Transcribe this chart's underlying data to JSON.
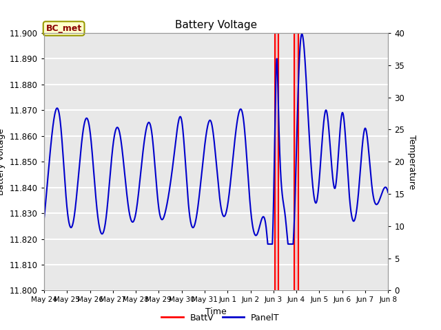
{
  "title": "Battery Voltage",
  "xlabel": "Time",
  "ylabel_left": "Battery Voltage",
  "ylabel_right": "Temperature",
  "annotation_text": "BC_met",
  "ylim_left": [
    11.8,
    11.9
  ],
  "ylim_right": [
    0,
    40
  ],
  "x_tick_labels": [
    "May 24",
    "May 25",
    "May 26",
    "May 27",
    "May 28",
    "May 29",
    "May 30",
    "May 31",
    "Jun 1",
    "Jun 2",
    "Jun 3",
    "Jun 4",
    "Jun 5",
    "Jun 6",
    "Jun 7",
    "Jun 8"
  ],
  "plot_bg_color": "#e8e8e8",
  "red_line_y": 11.9,
  "legend_entries": [
    "BattV",
    "PanelT"
  ],
  "legend_colors": [
    "#ff0000",
    "#0000cc"
  ],
  "red_vlines": [
    10.08,
    10.22,
    10.9,
    11.08
  ],
  "figsize": [
    6.4,
    4.8
  ],
  "dpi": 100
}
